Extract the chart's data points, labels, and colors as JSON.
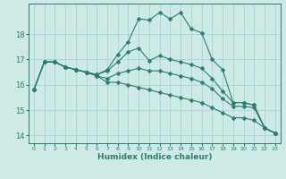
{
  "xlabel": "Humidex (Indice chaleur)",
  "bg_color": "#ceeae7",
  "grid_color": "#a8d5d1",
  "line_color": "#2d7d6e",
  "xlim": [
    -0.5,
    23.5
  ],
  "ylim": [
    13.7,
    19.2
  ],
  "yticks": [
    14,
    15,
    16,
    17,
    18
  ],
  "xticks": [
    0,
    1,
    2,
    3,
    4,
    5,
    6,
    7,
    8,
    9,
    10,
    11,
    12,
    13,
    14,
    15,
    16,
    17,
    18,
    19,
    20,
    21,
    22,
    23
  ],
  "series": [
    [
      15.8,
      16.9,
      16.9,
      16.7,
      16.6,
      16.5,
      16.4,
      16.6,
      17.2,
      17.7,
      18.6,
      18.55,
      18.85,
      18.6,
      18.85,
      18.2,
      18.05,
      17.0,
      16.6,
      15.3,
      15.3,
      15.2,
      14.3,
      14.1
    ],
    [
      15.8,
      16.9,
      16.9,
      16.7,
      16.6,
      16.5,
      16.4,
      16.55,
      16.9,
      17.3,
      17.45,
      16.95,
      17.15,
      17.0,
      16.9,
      16.8,
      16.65,
      16.25,
      15.75,
      15.3,
      15.3,
      15.2,
      14.3,
      14.1
    ],
    [
      15.8,
      16.9,
      16.9,
      16.7,
      16.6,
      16.5,
      16.35,
      16.25,
      16.45,
      16.55,
      16.65,
      16.55,
      16.55,
      16.45,
      16.35,
      16.25,
      16.1,
      15.85,
      15.45,
      15.15,
      15.15,
      15.1,
      14.3,
      14.1
    ],
    [
      15.8,
      16.9,
      16.9,
      16.7,
      16.6,
      16.5,
      16.35,
      16.1,
      16.1,
      16.0,
      15.9,
      15.8,
      15.7,
      15.6,
      15.5,
      15.4,
      15.3,
      15.1,
      14.9,
      14.7,
      14.7,
      14.6,
      14.3,
      14.1
    ]
  ],
  "markersize": 2.5,
  "linewidth": 0.8
}
